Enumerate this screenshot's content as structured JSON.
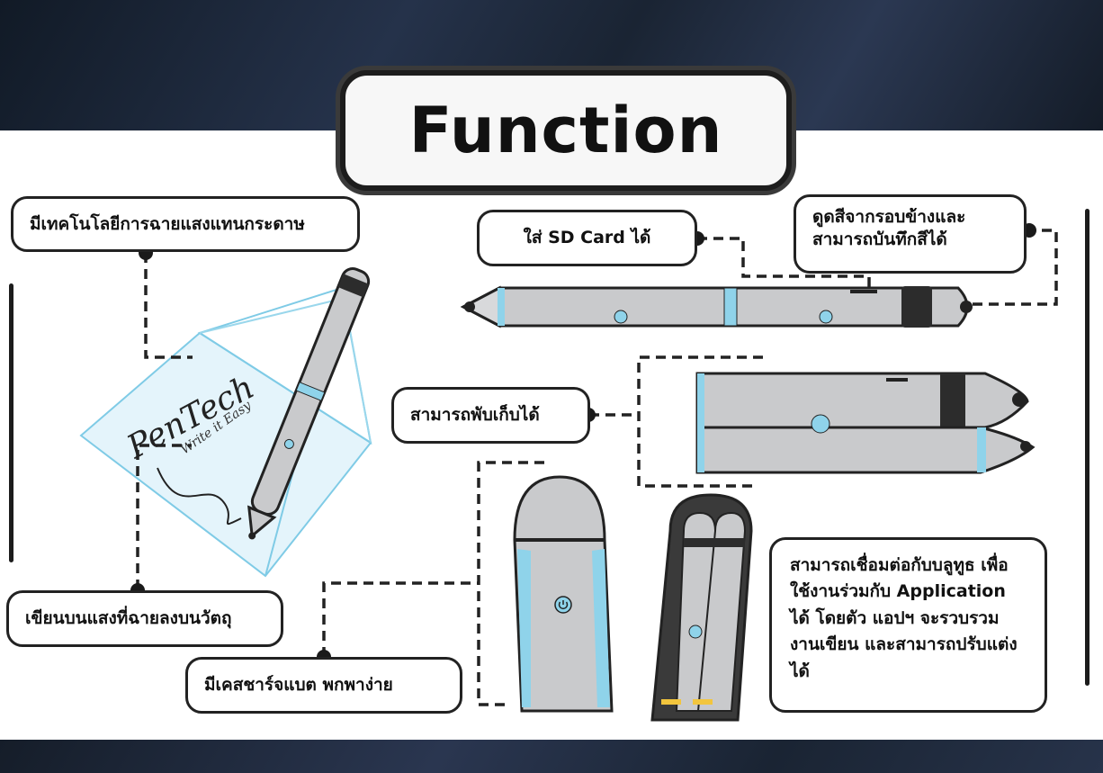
{
  "title": "Function",
  "features": {
    "projection_tech": "มีเทคโนโลยีการฉายแสงแทนกระดาษ",
    "sd_card": "ใส่ SD Card ได้",
    "color_sampling": "ดูดสีจากรอบข้างและ สามารถบันทึกสีได้",
    "foldable": "สามารถพับเก็บได้",
    "write_on_light": "เขียนบนแสงที่ฉายลงบนวัตถุ",
    "charging_case": "มีเคสชาร์จแบต พกพาง่าย",
    "bluetooth": "สามารถเชื่อมต่อกับบลูทูธ เพื่อใช้งานร่วมกับ Application ได้ โดยตัว แอปฯ จะรวบรวมงานเขียน และสามารถปรับแต่งได้"
  },
  "logo": {
    "brand": "PenTech",
    "tagline": "Write it Easy"
  },
  "colors": {
    "pen_body": "#c9cacc",
    "accent_blue": "#8fd3ea",
    "outline": "#222222",
    "frame": "#1b2430"
  },
  "icons": [
    "power-icon"
  ]
}
